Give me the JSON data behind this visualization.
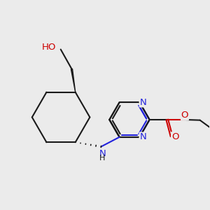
{
  "bg_color": "#ebebeb",
  "bond_color": "#1a1a1a",
  "N_color": "#2222dd",
  "O_color": "#cc0000",
  "bw": 1.5,
  "fs": 9.5,
  "fsh": 8.0,
  "xlim": [
    0.0,
    8.5
  ],
  "ylim": [
    2.0,
    8.5
  ]
}
